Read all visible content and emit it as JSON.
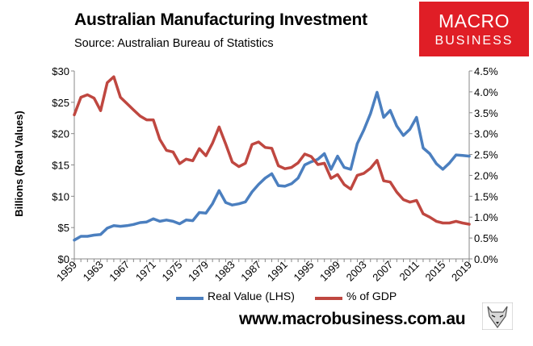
{
  "chart_data": {
    "type": "line",
    "title": "Australian Manufacturing Investment",
    "subtitle": "Source: Australian Bureau of Statistics",
    "ylabel": "Billions (Real Values)",
    "ylim_left": [
      0,
      30
    ],
    "ylim_right": [
      0,
      4.5
    ],
    "left_ticks": [
      "$0",
      "$5",
      "$10",
      "$15",
      "$20",
      "$25",
      "$30"
    ],
    "right_ticks": [
      "0.0%",
      "0.5%",
      "1.0%",
      "1.5%",
      "2.0%",
      "2.5%",
      "3.0%",
      "3.5%",
      "4.0%",
      "4.5%"
    ],
    "x_ticks": [
      "1959",
      "1963",
      "1967",
      "1971",
      "1975",
      "1979",
      "1983",
      "1987",
      "1991",
      "1995",
      "1999",
      "2003",
      "2007",
      "2011",
      "2015",
      "2019"
    ],
    "grid": false,
    "legend_position": "bottom",
    "x": [
      1959,
      1960,
      1961,
      1962,
      1963,
      1964,
      1965,
      1966,
      1967,
      1968,
      1969,
      1970,
      1971,
      1972,
      1973,
      1974,
      1975,
      1976,
      1977,
      1978,
      1979,
      1980,
      1981,
      1982,
      1983,
      1984,
      1985,
      1986,
      1987,
      1988,
      1989,
      1990,
      1991,
      1992,
      1993,
      1994,
      1995,
      1996,
      1997,
      1998,
      1999,
      2000,
      2001,
      2002,
      2003,
      2004,
      2005,
      2006,
      2007,
      2008,
      2009,
      2010,
      2011,
      2012,
      2013,
      2014,
      2015,
      2016,
      2017,
      2018,
      2019
    ],
    "series": [
      {
        "name": "Real Value (LHS)",
        "axis": "left",
        "color": "#4b7fbf",
        "values": [
          3.0,
          3.6,
          3.6,
          3.8,
          3.9,
          4.9,
          5.3,
          5.2,
          5.3,
          5.5,
          5.8,
          5.9,
          6.4,
          6.0,
          6.2,
          6.0,
          5.6,
          6.2,
          6.1,
          7.4,
          7.3,
          8.8,
          10.9,
          9.0,
          8.6,
          8.8,
          9.1,
          10.7,
          11.9,
          12.9,
          13.6,
          11.7,
          11.6,
          12.0,
          12.9,
          15.0,
          15.5,
          15.9,
          16.8,
          14.3,
          16.4,
          14.6,
          14.3,
          18.4,
          20.6,
          23.2,
          26.6,
          22.6,
          23.7,
          21.2,
          19.7,
          20.7,
          22.6,
          17.7,
          16.8,
          15.2,
          14.3,
          15.3,
          16.6,
          16.5,
          16.4
        ]
      },
      {
        "name": "% of GDP",
        "axis": "right",
        "color": "#bf4740",
        "values": [
          3.45,
          3.87,
          3.93,
          3.85,
          3.55,
          4.22,
          4.36,
          3.87,
          3.72,
          3.57,
          3.42,
          3.33,
          3.33,
          2.86,
          2.6,
          2.56,
          2.28,
          2.39,
          2.35,
          2.64,
          2.47,
          2.77,
          3.16,
          2.75,
          2.32,
          2.21,
          2.29,
          2.74,
          2.8,
          2.67,
          2.65,
          2.23,
          2.16,
          2.19,
          2.3,
          2.51,
          2.45,
          2.26,
          2.29,
          1.93,
          2.02,
          1.78,
          1.67,
          2.0,
          2.05,
          2.17,
          2.36,
          1.87,
          1.84,
          1.6,
          1.42,
          1.36,
          1.4,
          1.08,
          1.0,
          0.9,
          0.86,
          0.86,
          0.9,
          0.86,
          0.83
        ]
      }
    ]
  },
  "brand": {
    "logo_line1": "MACRO",
    "logo_line2": "BUSINESS",
    "logo_color": "#e01e26",
    "website": "www.macrobusiness.com.au"
  }
}
